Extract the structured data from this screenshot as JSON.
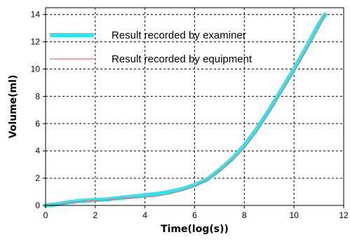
{
  "chart_data": {
    "type": "line",
    "title": "",
    "xlabel": "Time(log(s))",
    "ylabel": "Volume(ml)",
    "xlim": [
      0,
      12
    ],
    "ylim": [
      0,
      14.5
    ],
    "x_ticks": [
      "0",
      "2",
      "4",
      "6",
      "8",
      "10",
      "12"
    ],
    "y_ticks": [
      "0",
      "2",
      "4",
      "6",
      "8",
      "10",
      "12",
      "14"
    ],
    "grid": true,
    "grid_style": "dashed",
    "legend_position": "top-left",
    "series": [
      {
        "name": "Result recorded by examiner",
        "color": "#2fe6f0",
        "line_width": "thick",
        "x": [
          0,
          0.5,
          1,
          1.5,
          2,
          2.5,
          3,
          3.5,
          4,
          4.5,
          5,
          5.5,
          6,
          6.5,
          7,
          7.5,
          8,
          8.5,
          9,
          9.5,
          10,
          10.5,
          11,
          11.25
        ],
        "y": [
          0,
          0.1,
          0.25,
          0.35,
          0.4,
          0.45,
          0.55,
          0.65,
          0.75,
          0.85,
          1.0,
          1.2,
          1.5,
          1.9,
          2.6,
          3.4,
          4.4,
          5.6,
          7.0,
          8.5,
          10.0,
          11.6,
          13.3,
          14.0
        ]
      },
      {
        "name": "Result recorded by equipment",
        "color": "#f06a6a",
        "line_width": "thin",
        "x": [
          0,
          0.5,
          1,
          1.5,
          2,
          2.5,
          3,
          3.5,
          4,
          4.5,
          5,
          5.5,
          6,
          6.5,
          7,
          7.5,
          8,
          8.5,
          9,
          9.5,
          10,
          10.5,
          11,
          11.25
        ],
        "y": [
          0,
          0.05,
          0.2,
          0.3,
          0.35,
          0.4,
          0.5,
          0.55,
          0.6,
          0.7,
          0.85,
          1.1,
          1.4,
          1.85,
          2.5,
          3.3,
          4.2,
          5.4,
          6.8,
          8.3,
          9.8,
          11.4,
          13.0,
          14.0
        ]
      }
    ]
  }
}
